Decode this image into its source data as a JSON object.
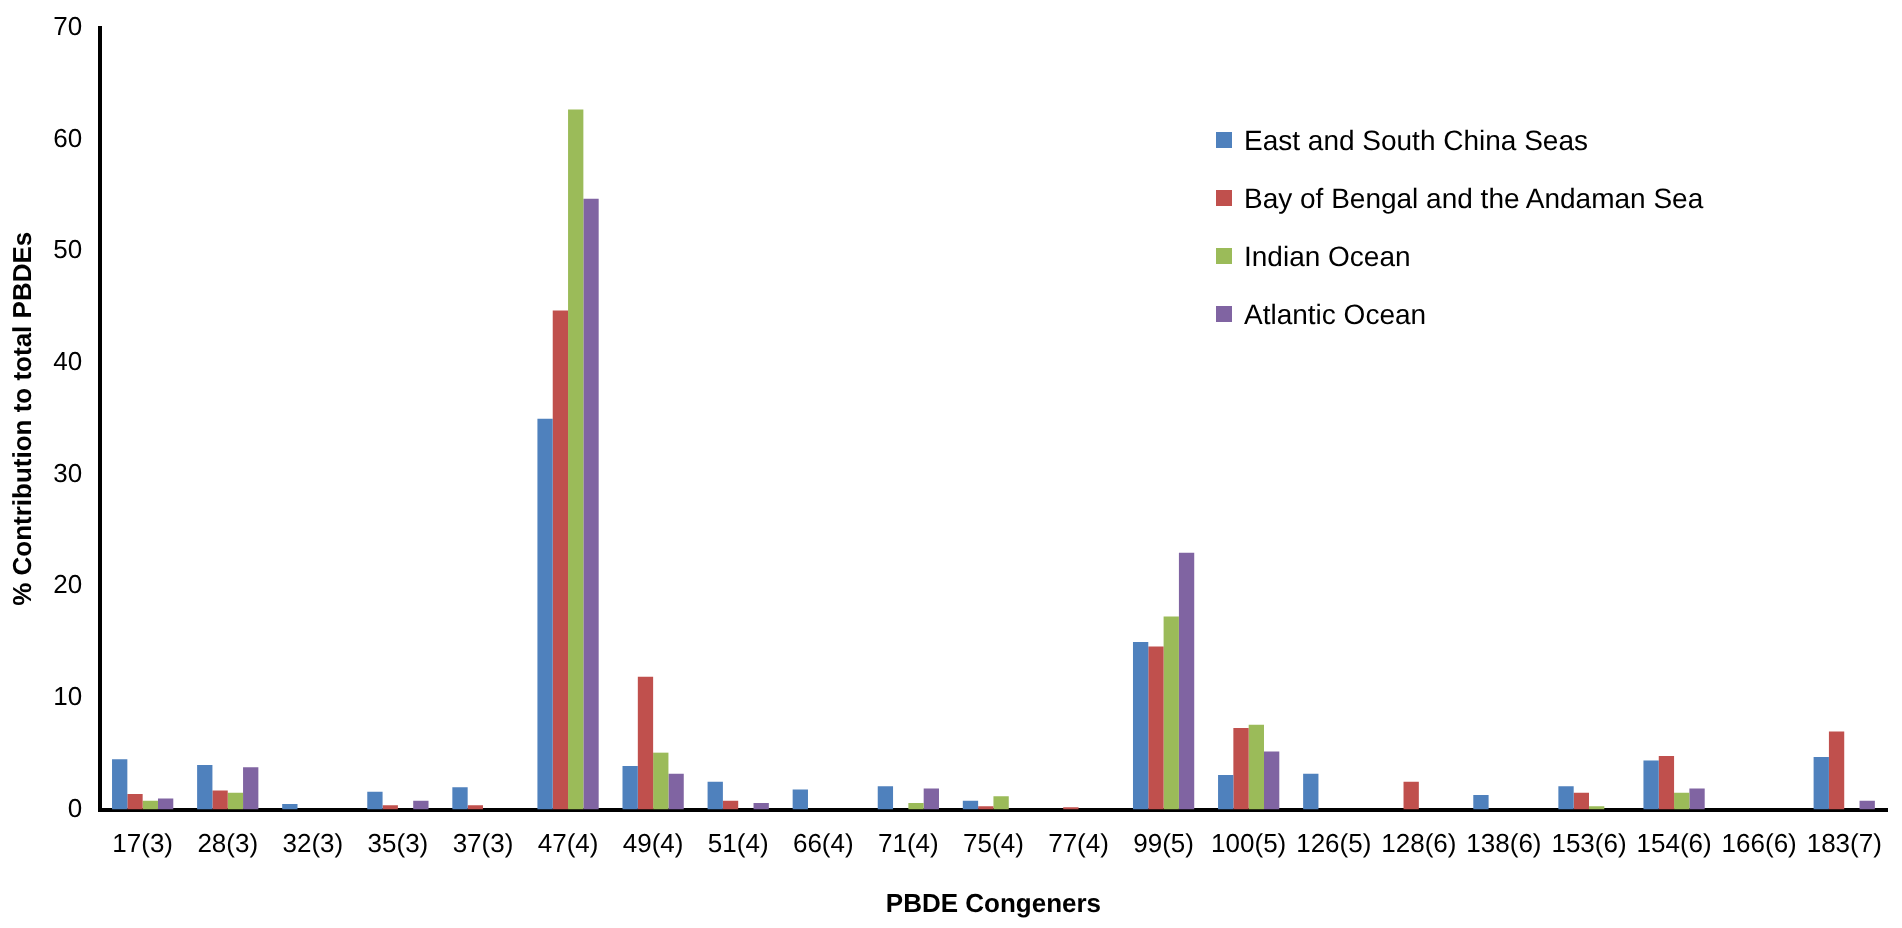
{
  "chart_data": {
    "type": "bar",
    "xlabel": "PBDE Congeners",
    "ylabel": "% Contribution to total PBDEs",
    "categories": [
      "17(3)",
      "28(3)",
      "32(3)",
      "35(3)",
      "37(3)",
      "47(4)",
      "49(4)",
      "51(4)",
      "66(4)",
      "71(4)",
      "75(4)",
      "77(4)",
      "99(5)",
      "100(5)",
      "126(5)",
      "128(6)",
      "138(6)",
      "153(6)",
      "154(6)",
      "166(6)",
      "183(7)"
    ],
    "series": [
      {
        "name": "East and South China Seas",
        "color": "#4f81bd",
        "values": [
          4.5,
          4.0,
          0.5,
          1.6,
          2.0,
          35.0,
          3.9,
          2.5,
          1.8,
          2.1,
          0.8,
          0,
          15.0,
          3.1,
          3.2,
          0,
          1.3,
          2.1,
          4.4,
          0,
          4.7
        ]
      },
      {
        "name": "Bay of Bengal and the Andaman Sea",
        "color": "#c0504d",
        "values": [
          1.4,
          1.7,
          0,
          0.4,
          0.4,
          44.7,
          11.9,
          0.8,
          0,
          0,
          0.3,
          0.2,
          14.6,
          7.3,
          0,
          2.5,
          0,
          1.5,
          4.8,
          0,
          7.0
        ]
      },
      {
        "name": "Indian Ocean",
        "color": "#9bbb59",
        "values": [
          0.8,
          1.5,
          0,
          0,
          0,
          62.7,
          5.1,
          0,
          0,
          0.6,
          1.2,
          0,
          17.3,
          7.6,
          0,
          0,
          0,
          0.3,
          1.5,
          0,
          0
        ]
      },
      {
        "name": "Atlantic Ocean",
        "color": "#8064a2",
        "values": [
          1.0,
          3.8,
          0,
          0.8,
          0,
          54.7,
          3.2,
          0.6,
          0,
          1.9,
          0,
          0,
          23.0,
          5.2,
          0,
          0,
          0,
          0,
          1.9,
          0,
          0.8
        ]
      }
    ],
    "ylim": [
      0,
      70
    ],
    "yticks": [
      0,
      10,
      20,
      30,
      40,
      50,
      60,
      70
    ],
    "grid": false,
    "legend": "top right"
  }
}
